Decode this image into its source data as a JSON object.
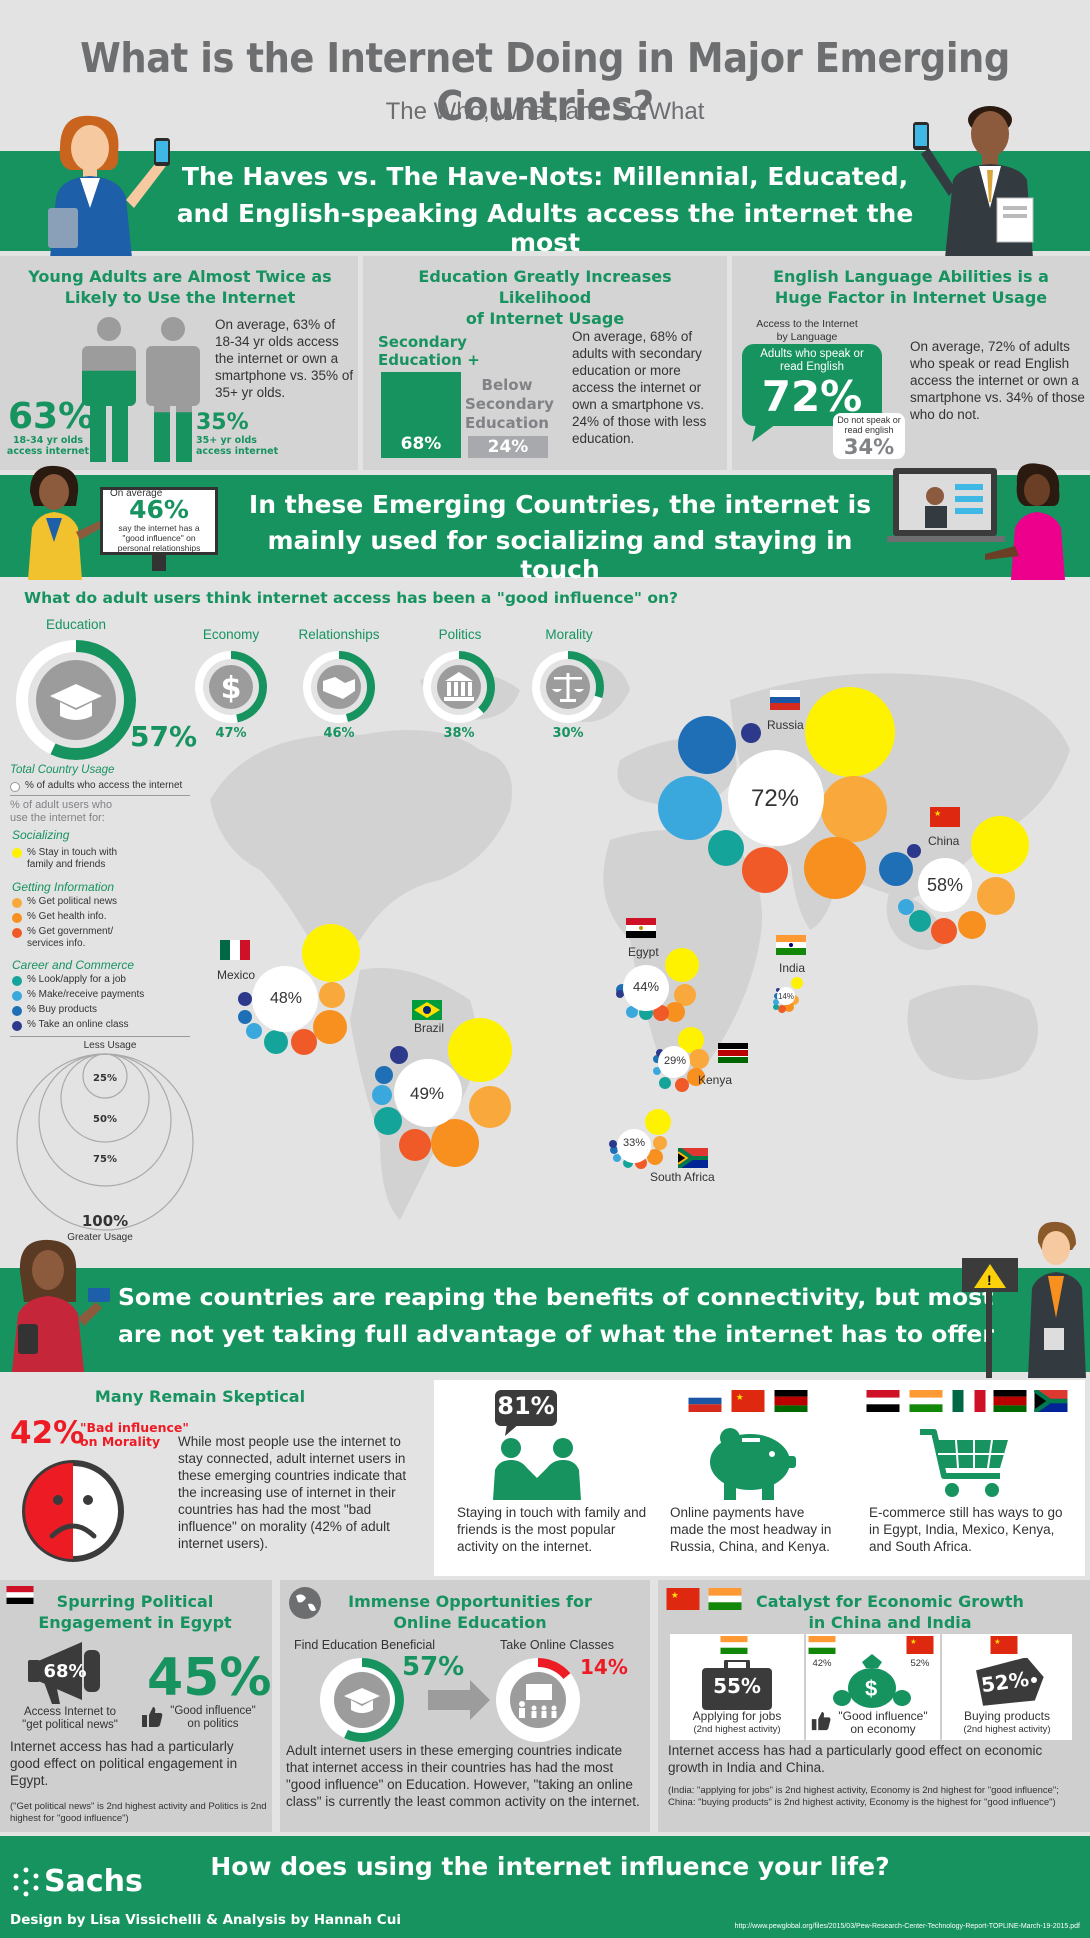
{
  "header": {
    "title": "What is the Internet Doing in Major Emerging Countries?",
    "subtitle": "The Who, What, and So What"
  },
  "banner1": {
    "line1": "The Haves vs. The Have-Nots: Millennial, Educated,",
    "line2": "and English-speaking Adults access the internet the most"
  },
  "young": {
    "title1": "Young Adults are Almost Twice as",
    "title2": "Likely to Use the Internet",
    "body": "On average, 63% of 18-34 yr olds access the internet or own a smartphone vs. 35% of 35+ yr olds.",
    "young_pct": "63%",
    "young_label1": "18-34 yr olds",
    "young_label2": "access internet",
    "old_pct": "35%",
    "old_label1": "35+ yr olds",
    "old_label2": "access internet",
    "young_value": 0.63,
    "old_value": 0.35
  },
  "education": {
    "title1": "Education Greatly Increases Likelihood",
    "title2": "of Internet Usage",
    "secondary_label1": "Secondary",
    "secondary_label2": "Education +",
    "secondary_pct": "68%",
    "below_label1": "Below",
    "below_label2": "Secondary",
    "below_label3": "Education",
    "below_pct": "24%",
    "body": "On average, 68% of adults with secondary education or more access the internet or own a smartphone vs. 24% of those with less education."
  },
  "english": {
    "title1": "English Language Abilities is a",
    "title2": "Huge Factor in Internet Usage",
    "access_label1": "Access to the Internet",
    "access_label2": "by Language",
    "speak_label1": "Adults who speak or",
    "speak_label2": "read English",
    "speak_pct": "72%",
    "nospeak_label1": "Do not speak or",
    "nospeak_label2": "read english",
    "nospeak_pct": "34%",
    "body": "On average, 72% of adults who speak or read English access the internet or own a smartphone vs. 34% of those who do not."
  },
  "banner2": {
    "line1": "In these Emerging Countries, the internet is",
    "line2": "mainly used for socializing and staying in touch",
    "avg_label": "On average",
    "avg_pct": "46%",
    "avg_desc1": "say the internet has a",
    "avg_desc2": "\"good influence\" on",
    "avg_desc3": "personal relationships"
  },
  "influence": {
    "question": "What do adult users think internet access has been a \"good influence\" on?",
    "items": [
      {
        "label": "Education",
        "pct": "57%",
        "value": 0.57
      },
      {
        "label": "Economy",
        "pct": "47%",
        "value": 0.47
      },
      {
        "label": "Relationships",
        "pct": "46%",
        "value": 0.46
      },
      {
        "label": "Politics",
        "pct": "38%",
        "value": 0.38
      },
      {
        "label": "Morality",
        "pct": "30%",
        "value": 0.3
      }
    ]
  },
  "legend": {
    "total_title": "Total Country Usage",
    "total_desc": "% of adults who access the internet",
    "usage_title1": "% of adult users who",
    "usage_title2": "use the internet for:",
    "social_title": "Socializing",
    "social_item1": "% Stay in touch with",
    "social_item2": "family and friends",
    "info_title": "Getting Information",
    "info_items": [
      "% Get political news",
      "% Get health info.",
      "% Get government/",
      "services info."
    ],
    "career_title": "Career and Commerce",
    "career_items": [
      "% Look/apply for a job",
      "% Make/receive payments",
      "% Buy products",
      "% Take an online class"
    ],
    "less_usage": "Less Usage",
    "greater_usage": "Greater Usage",
    "scale": [
      "25%",
      "50%",
      "75%",
      "100%"
    ]
  },
  "countries": [
    {
      "name": "Russia",
      "pct": "72%"
    },
    {
      "name": "China",
      "pct": "58%"
    },
    {
      "name": "Egypt",
      "pct": "44%"
    },
    {
      "name": "India",
      "pct": "14%"
    },
    {
      "name": "Mexico",
      "pct": "48%"
    },
    {
      "name": "Brazil",
      "pct": "49%"
    },
    {
      "name": "Kenya",
      "pct": "29%"
    },
    {
      "name": "South Africa",
      "pct": "33%"
    }
  ],
  "colors": {
    "green": "#16935f",
    "yellow": "#fff200",
    "orange_light": "#f9a83b",
    "orange": "#f7901e",
    "orange_red": "#f05a28",
    "teal": "#15a49a",
    "light_blue": "#3aa7dd",
    "mid_blue": "#1f6fb7",
    "navy": "#2d3a8c",
    "red": "#ed1c24"
  },
  "banner3": {
    "line1": "Some countries are reaping the benefits of connectivity, but most",
    "line2": "are not yet taking full advantage of what the internet has to offer"
  },
  "skeptical": {
    "title": "Many Remain Skeptical",
    "pct": "42%",
    "label1": "\"Bad influence\"",
    "label2": "on Morality",
    "body": "While most people use the internet to stay connected, adult internet users in these emerging countries indicate that the increasing use of internet in their countries has had the most \"bad influence\" on morality (42% of adult internet users)."
  },
  "activities": {
    "touch_pct": "81%",
    "touch_text": "Staying in touch with family and friends is the most popular activity on the internet.",
    "payments_text": "Online payments have made the most headway in Russia, China, and Kenya.",
    "ecommerce_text": "E-commerce still has ways to go in Egypt, India, Mexico, Kenya, and South Africa."
  },
  "politics": {
    "title1": "Spurring Political",
    "title2": "Engagement in Egypt",
    "news_pct": "68%",
    "news_label1": "Access Internet to",
    "news_label2": "\"get political news\"",
    "good_pct": "45%",
    "good_label1": "\"Good influence\"",
    "good_label2": "on politics",
    "body": "Internet access has had a particularly good effect on political engagement in Egypt.",
    "note": "(\"Get political news\" is 2nd highest activity and Politics is 2nd highest for \"good influence\")"
  },
  "online_edu": {
    "title1": "Immense Opportunities for",
    "title2": "Online Education",
    "beneficial_label": "Find Education Beneficial",
    "beneficial_pct": "57%",
    "beneficial_value": 0.57,
    "classes_label": "Take Online Classes",
    "classes_pct": "14%",
    "classes_value": 0.14,
    "body": "Adult internet users in these emerging countries indicate that internet access in their countries has had the most \"good influence\" on Education. However, \"taking an online class\" is currently the least common activity on the internet."
  },
  "economic": {
    "title1": "Catalyst for Economic Growth",
    "title2": "in China and India",
    "jobs_pct": "55%",
    "jobs_label1": "Applying for jobs",
    "jobs_label2": "(2nd highest activity)",
    "india_pct": "42%",
    "china_pct": "52%",
    "economy_label1": "\"Good influence\"",
    "economy_label2": "on economy",
    "buying_pct": "52%",
    "buying_label1": "Buying products",
    "buying_label2": "(2nd highest activity)",
    "body": "Internet access has had a particularly good effect on economic growth in India and China.",
    "note": "(India: \"applying for jobs\" is 2nd highest activity, Economy is 2nd highest for \"good influence\"; China: \"buying products\" is 2nd highest activity, Economy is the highest for \"good influence\")"
  },
  "footer": {
    "brand": "Sachs",
    "question": "How does using the internet influence your life?",
    "credits": "Design by Lisa Vissichelli & Analysis by Hannah Cui",
    "source": "http://www.pewglobal.org/files/2015/03/Pew-Research-Center-Technology-Report-TOPLINE-March-19-2015.pdf"
  }
}
